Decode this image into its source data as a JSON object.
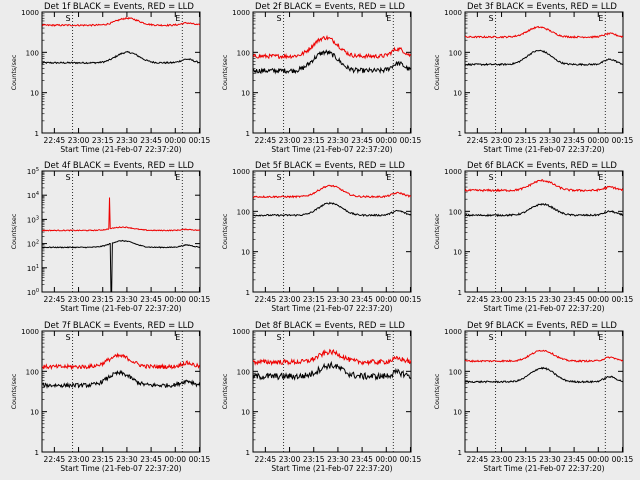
{
  "figure": {
    "start_time_label": "Start Time (21-Feb-07 22:37:20)",
    "ylabel": "Counts/sec",
    "legend_text": "BLACK = Events, RED = LLD"
  },
  "colors": {
    "events": "#000000",
    "lld": "#ee0000",
    "background": "#ececec"
  },
  "chart_data": [
    {
      "type": "line",
      "title": "Det 1f BLACK = Events, RED = LLD",
      "x_ticks": [
        "22:45",
        "23:00",
        "23:15",
        "23:30",
        "23:45",
        "00:00",
        "00:15"
      ],
      "xlabel": "Start Time (21-Feb-07 22:37:20)",
      "ylabel": "Counts/sec",
      "yscale": "log",
      "ylim": [
        1,
        1000
      ],
      "y_ticks": [
        "1",
        "10",
        "100",
        "1000"
      ],
      "markers": [
        "S",
        "E"
      ],
      "vlines_min": [
        19,
        87
      ],
      "series": [
        {
          "name": "Events",
          "color": "#000000",
          "baseline": 55,
          "bump_peak": 100,
          "bump_center_min": 53,
          "noise": 0.02
        },
        {
          "name": "LLD",
          "color": "#ee0000",
          "baseline": 470,
          "bump_peak": 700,
          "bump_center_min": 53,
          "noise": 0.02
        }
      ]
    },
    {
      "type": "line",
      "title": "Det 2f BLACK = Events, RED = LLD",
      "x_ticks": [
        "22:45",
        "23:00",
        "23:15",
        "23:30",
        "23:45",
        "00:00",
        "00:15"
      ],
      "xlabel": "Start Time (21-Feb-07 22:37:20)",
      "ylabel": "Counts/sec",
      "yscale": "log",
      "ylim": [
        1,
        1000
      ],
      "y_ticks": [
        "1",
        "10",
        "100",
        "1000"
      ],
      "markers": [
        "S",
        "E"
      ],
      "vlines_min": [
        19,
        87
      ],
      "series": [
        {
          "name": "Events",
          "color": "#000000",
          "baseline": 35,
          "bump_peak": 100,
          "bump_center_min": 45,
          "noise": 0.06
        },
        {
          "name": "LLD",
          "color": "#ee0000",
          "baseline": 80,
          "bump_peak": 230,
          "bump_center_min": 45,
          "noise": 0.05
        }
      ]
    },
    {
      "type": "line",
      "title": "Det 3f BLACK = Events, RED = LLD",
      "x_ticks": [
        "22:45",
        "23:00",
        "23:15",
        "23:30",
        "23:45",
        "00:00",
        "00:15"
      ],
      "xlabel": "Start Time (21-Feb-07 22:37:20)",
      "ylabel": "Counts/sec",
      "yscale": "log",
      "ylim": [
        1,
        1000
      ],
      "y_ticks": [
        "1",
        "10",
        "100",
        "1000"
      ],
      "markers": [
        "S",
        "E"
      ],
      "vlines_min": [
        19,
        87
      ],
      "series": [
        {
          "name": "Events",
          "color": "#000000",
          "baseline": 50,
          "bump_peak": 110,
          "bump_center_min": 46,
          "noise": 0.02
        },
        {
          "name": "LLD",
          "color": "#ee0000",
          "baseline": 240,
          "bump_peak": 420,
          "bump_center_min": 46,
          "noise": 0.02
        }
      ]
    },
    {
      "type": "line",
      "title": "Det 4f BLACK = Events, RED = LLD",
      "x_ticks": [
        "22:45",
        "23:00",
        "23:15",
        "23:30",
        "23:45",
        "00:00",
        "00:15"
      ],
      "xlabel": "Start Time (21-Feb-07 22:37:20)",
      "ylabel": "Counts/sec",
      "yscale": "log",
      "ylim": [
        1,
        100000
      ],
      "y_ticks": [
        "10^0",
        "10^1",
        "10^2",
        "10^3",
        "10^4",
        "10^5"
      ],
      "markers": [
        "S",
        "E"
      ],
      "vlines_min": [
        19,
        87
      ],
      "series": [
        {
          "name": "Events",
          "color": "#000000",
          "baseline": 70,
          "bump_peak": 130,
          "bump_center_min": 50,
          "noise": 0.02,
          "spike_min": 43,
          "spike_value": 0.3
        },
        {
          "name": "LLD",
          "color": "#ee0000",
          "baseline": 350,
          "bump_peak": 480,
          "bump_center_min": 50,
          "noise": 0.02,
          "spike_min": 42,
          "spike_value": 8000
        }
      ]
    },
    {
      "type": "line",
      "title": "Det 5f BLACK = Events, RED = LLD",
      "x_ticks": [
        "22:45",
        "23:00",
        "23:15",
        "23:30",
        "23:45",
        "00:00",
        "00:15"
      ],
      "xlabel": "Start Time (21-Feb-07 22:37:20)",
      "ylabel": "Counts/sec",
      "yscale": "log",
      "ylim": [
        1,
        1000
      ],
      "y_ticks": [
        "1",
        "10",
        "100",
        "1000"
      ],
      "markers": [
        "S",
        "E"
      ],
      "vlines_min": [
        19,
        87
      ],
      "series": [
        {
          "name": "Events",
          "color": "#000000",
          "baseline": 80,
          "bump_peak": 160,
          "bump_center_min": 48,
          "noise": 0.02
        },
        {
          "name": "LLD",
          "color": "#ee0000",
          "baseline": 230,
          "bump_peak": 430,
          "bump_center_min": 48,
          "noise": 0.02
        }
      ]
    },
    {
      "type": "line",
      "title": "Det 6f BLACK = Events, RED = LLD",
      "x_ticks": [
        "22:45",
        "23:00",
        "23:15",
        "23:30",
        "23:45",
        "00:00",
        "00:15"
      ],
      "xlabel": "Start Time (21-Feb-07 22:37:20)",
      "ylabel": "Counts/sec",
      "yscale": "log",
      "ylim": [
        1,
        1000
      ],
      "y_ticks": [
        "1",
        "10",
        "100",
        "1000"
      ],
      "markers": [
        "S",
        "E"
      ],
      "vlines_min": [
        19,
        87
      ],
      "series": [
        {
          "name": "Events",
          "color": "#000000",
          "baseline": 80,
          "bump_peak": 150,
          "bump_center_min": 48,
          "noise": 0.02
        },
        {
          "name": "LLD",
          "color": "#ee0000",
          "baseline": 330,
          "bump_peak": 580,
          "bump_center_min": 48,
          "noise": 0.025
        }
      ]
    },
    {
      "type": "line",
      "title": "Det 7f BLACK = Events, RED = LLD",
      "x_ticks": [
        "22:45",
        "23:00",
        "23:15",
        "23:30",
        "23:45",
        "00:00",
        "00:15"
      ],
      "xlabel": "Start Time (21-Feb-07 22:37:20)",
      "ylabel": "Counts/sec",
      "yscale": "log",
      "ylim": [
        1,
        1000
      ],
      "y_ticks": [
        "1",
        "10",
        "100",
        "1000"
      ],
      "markers": [
        "S",
        "E"
      ],
      "vlines_min": [
        19,
        87
      ],
      "series": [
        {
          "name": "Events",
          "color": "#000000",
          "baseline": 45,
          "bump_peak": 90,
          "bump_center_min": 48,
          "noise": 0.05
        },
        {
          "name": "LLD",
          "color": "#ee0000",
          "baseline": 130,
          "bump_peak": 240,
          "bump_center_min": 48,
          "noise": 0.05
        }
      ]
    },
    {
      "type": "line",
      "title": "Det 8f BLACK = Events, RED = LLD",
      "x_ticks": [
        "22:45",
        "23:00",
        "23:15",
        "23:30",
        "23:45",
        "00:00",
        "00:15"
      ],
      "xlabel": "Start Time (21-Feb-07 22:37:20)",
      "ylabel": "Counts/sec",
      "yscale": "log",
      "ylim": [
        1,
        1000
      ],
      "y_ticks": [
        "1",
        "10",
        "100",
        "1000"
      ],
      "markers": [
        "S",
        "E"
      ],
      "vlines_min": [
        19,
        87
      ],
      "series": [
        {
          "name": "Events",
          "color": "#000000",
          "baseline": 75,
          "bump_peak": 140,
          "bump_center_min": 48,
          "noise": 0.08
        },
        {
          "name": "LLD",
          "color": "#ee0000",
          "baseline": 170,
          "bump_peak": 300,
          "bump_center_min": 48,
          "noise": 0.06
        }
      ]
    },
    {
      "type": "line",
      "title": "Det 9f BLACK = Events, RED = LLD",
      "x_ticks": [
        "22:45",
        "23:00",
        "23:15",
        "23:30",
        "23:45",
        "00:00",
        "00:15"
      ],
      "xlabel": "Start Time (21-Feb-07 22:37:20)",
      "ylabel": "Counts/sec",
      "yscale": "log",
      "ylim": [
        1,
        1000
      ],
      "y_ticks": [
        "1",
        "10",
        "100",
        "1000"
      ],
      "markers": [
        "S",
        "E"
      ],
      "vlines_min": [
        19,
        87
      ],
      "series": [
        {
          "name": "Events",
          "color": "#000000",
          "baseline": 55,
          "bump_peak": 120,
          "bump_center_min": 48,
          "noise": 0.02
        },
        {
          "name": "LLD",
          "color": "#ee0000",
          "baseline": 180,
          "bump_peak": 330,
          "bump_center_min": 48,
          "noise": 0.02
        }
      ]
    }
  ]
}
